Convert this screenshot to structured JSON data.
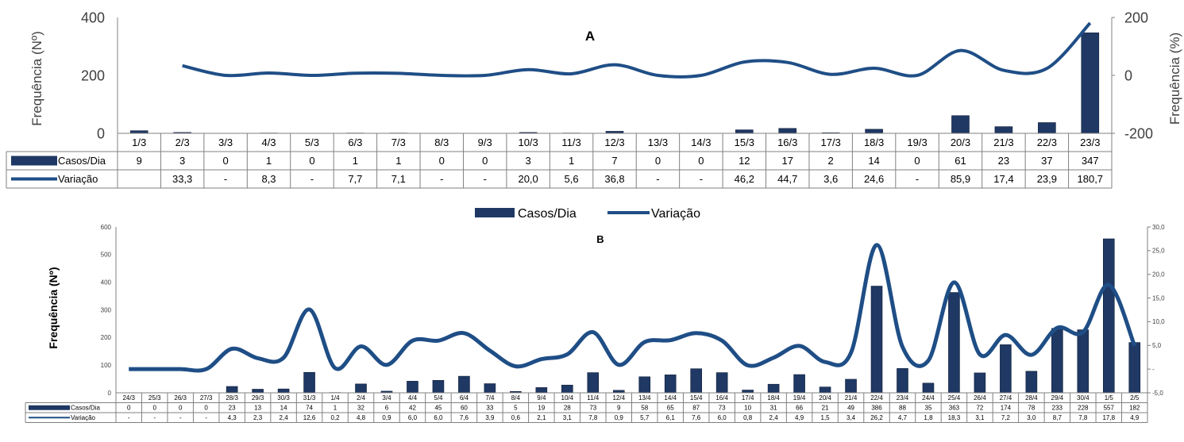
{
  "colors": {
    "bar": "#1f3864",
    "line": "#1f4e86",
    "grid": "#808080",
    "text": "#404040"
  },
  "legend_labels": [
    "Casos/Dia",
    "Variação"
  ],
  "chart_data": [
    {
      "type": "bar",
      "panel_label": "A",
      "ylabel_left": "Frequência (Nº)",
      "ylabel_right": "Frequência (%)",
      "left_ticks": [
        "0",
        "200",
        "400"
      ],
      "right_ticks": [
        "-200",
        "0",
        "200"
      ],
      "ylim_left": [
        0,
        400
      ],
      "ylim_right": [
        -200,
        200
      ],
      "categories": [
        "1/3",
        "2/3",
        "3/3",
        "4/3",
        "5/3",
        "6/3",
        "7/3",
        "8/3",
        "9/3",
        "10/3",
        "11/3",
        "12/3",
        "13/3",
        "14/3",
        "15/3",
        "16/3",
        "17/3",
        "18/3",
        "19/3",
        "20/3",
        "21/3",
        "22/3",
        "23/3"
      ],
      "series": [
        {
          "name": "Casos/Dia",
          "type": "bar",
          "axis": "left",
          "values": [
            9,
            3,
            0,
            1,
            0,
            1,
            1,
            0,
            0,
            3,
            1,
            7,
            0,
            0,
            12,
            17,
            2,
            14,
            0,
            61,
            23,
            37,
            347
          ],
          "labels": [
            "9",
            "3",
            "0",
            "1",
            "0",
            "1",
            "1",
            "0",
            "0",
            "3",
            "1",
            "7",
            "0",
            "0",
            "12",
            "17",
            "2",
            "14",
            "0",
            "61",
            "23",
            "37",
            "347"
          ]
        },
        {
          "name": "Variação",
          "type": "line",
          "axis": "right",
          "values": [
            null,
            33.3,
            0,
            8.3,
            0,
            7.7,
            7.1,
            0,
            0,
            20.0,
            5.6,
            36.8,
            0,
            0,
            46.2,
            44.7,
            3.6,
            24.6,
            0,
            85.9,
            17.4,
            23.9,
            180.7
          ],
          "labels": [
            "",
            "33,3",
            "-",
            "8,3",
            "-",
            "7,7",
            "7,1",
            "-",
            "-",
            "20,0",
            "5,6",
            "36,8",
            "-",
            "-",
            "46,2",
            "44,7",
            "3,6",
            "24,6",
            "-",
            "85,9",
            "17,4",
            "23,9",
            "180,7"
          ]
        }
      ]
    },
    {
      "type": "bar",
      "panel_label": "B",
      "ylabel_left": "Frequência (Nº)",
      "ylabel_right": "",
      "left_ticks": [
        "0",
        "100",
        "200",
        "300",
        "400",
        "500",
        "600"
      ],
      "right_ticks": [
        "-5,0",
        "-",
        "5,0",
        "10,0",
        "15,0",
        "20,0",
        "25,0",
        "30,0"
      ],
      "ylim_left": [
        0,
        600
      ],
      "ylim_right": [
        -5,
        30
      ],
      "categories": [
        "24/3",
        "25/3",
        "26/3",
        "27/3",
        "28/3",
        "29/3",
        "30/3",
        "31/3",
        "1/4",
        "2/4",
        "3/4",
        "4/4",
        "5/4",
        "6/4",
        "7/4",
        "8/4",
        "9/4",
        "10/4",
        "11/4",
        "12/4",
        "13/4",
        "14/4",
        "15/4",
        "16/4",
        "17/4",
        "18/4",
        "19/4",
        "20/4",
        "21/4",
        "22/4",
        "23/4",
        "24/4",
        "25/4",
        "26/4",
        "27/4",
        "28/4",
        "29/4",
        "30/4",
        "1/5",
        "2/5"
      ],
      "series": [
        {
          "name": "Casos/Dia",
          "type": "bar",
          "axis": "left",
          "values": [
            0,
            0,
            0,
            0,
            23,
            13,
            14,
            74,
            1,
            32,
            6,
            42,
            45,
            60,
            33,
            5,
            19,
            28,
            73,
            9,
            58,
            65,
            87,
            73,
            10,
            31,
            66,
            21,
            49,
            386,
            88,
            35,
            363,
            72,
            174,
            78,
            233,
            228,
            557,
            182
          ],
          "labels": [
            "0",
            "0",
            "0",
            "0",
            "23",
            "13",
            "14",
            "74",
            "1",
            "32",
            "6",
            "42",
            "45",
            "60",
            "33",
            "5",
            "19",
            "28",
            "73",
            "9",
            "58",
            "65",
            "87",
            "73",
            "10",
            "31",
            "66",
            "21",
            "49",
            "386",
            "88",
            "35",
            "363",
            "72",
            "174",
            "78",
            "233",
            "228",
            "557",
            "182"
          ]
        },
        {
          "name": "Variação",
          "type": "line",
          "axis": "right",
          "values": [
            0,
            0,
            0,
            0,
            4.3,
            2.3,
            2.4,
            12.6,
            0.2,
            4.8,
            0.9,
            6.0,
            6.0,
            7.6,
            3.9,
            0.6,
            2.1,
            3.1,
            7.8,
            0.9,
            5.7,
            6.1,
            7.6,
            6.0,
            0.8,
            2.4,
            4.9,
            1.5,
            3.4,
            26.2,
            4.7,
            1.8,
            18.3,
            3.1,
            7.2,
            3.0,
            8.7,
            7.8,
            17.8,
            4.9
          ],
          "labels": [
            "-",
            "-",
            "-",
            "-",
            "4,3",
            "2,3",
            "2,4",
            "12,6",
            "0,2",
            "4,8",
            "0,9",
            "6,0",
            "6,0",
            "7,6",
            "3,9",
            "0,6",
            "2,1",
            "3,1",
            "7,8",
            "0,9",
            "5,7",
            "6,1",
            "7,6",
            "6,0",
            "0,8",
            "2,4",
            "4,9",
            "1,5",
            "3,4",
            "26,2",
            "4,7",
            "1,8",
            "18,3",
            "3,1",
            "7,2",
            "3,0",
            "8,7",
            "7,8",
            "17,8",
            "4,9"
          ]
        }
      ]
    }
  ]
}
